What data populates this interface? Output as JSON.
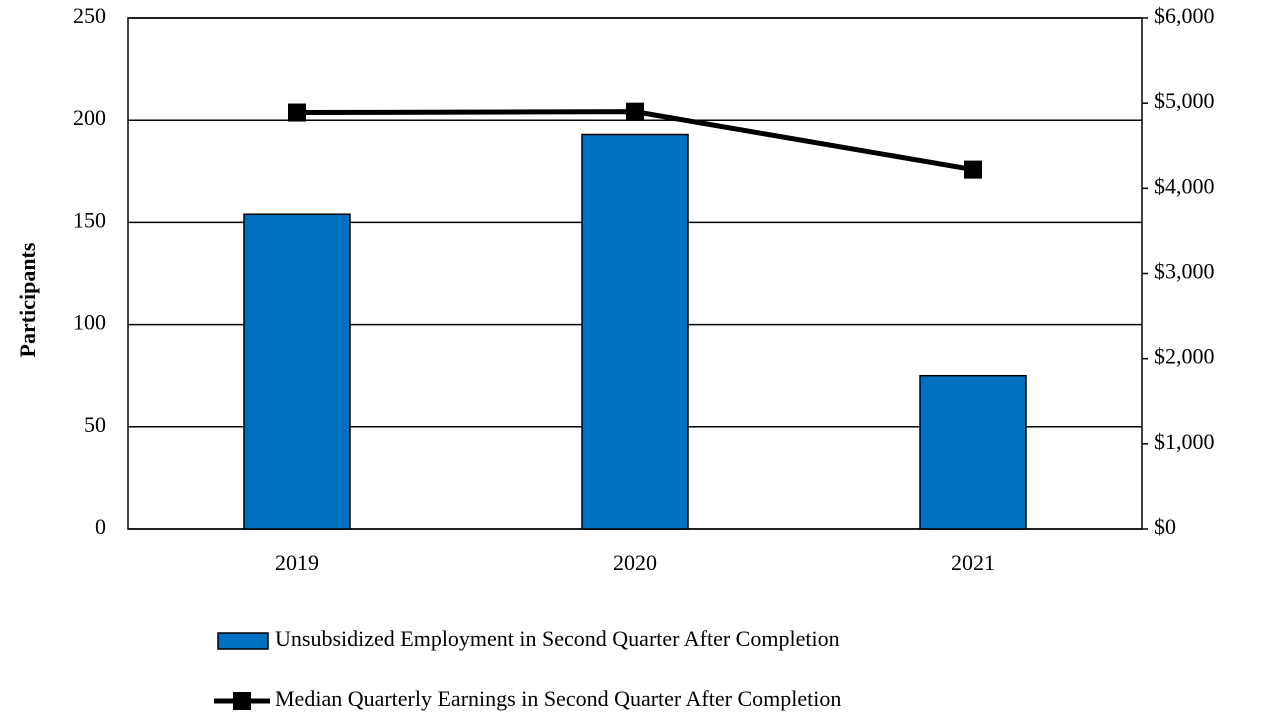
{
  "chart_data": {
    "type": "bar",
    "y_label": "Participants",
    "categories": [
      "2019",
      "2020",
      "2021"
    ],
    "series": [
      {
        "name": "Unsubsidized Employment in Second Quarter After Completion",
        "color": "#0070c0",
        "type": "bar",
        "values": [
          154,
          193,
          75
        ]
      },
      {
        "name": "Median Quarterly Earnings in Second Quarter After Completion",
        "color": "#000000",
        "type": "line",
        "axis": "y2",
        "values": [
          4890,
          4900,
          4220
        ]
      }
    ],
    "ylim": [
      0,
      250
    ],
    "yticks": [
      0,
      50,
      100,
      150,
      200,
      250
    ],
    "y2lim": [
      0,
      6000
    ],
    "y2ticks": [
      {
        "value": 0,
        "label": "$0"
      },
      {
        "value": 1000,
        "label": "$1,000"
      },
      {
        "value": 2000,
        "label": "$2,000"
      },
      {
        "value": 3000,
        "label": "$3,000"
      },
      {
        "value": 4000,
        "label": "$4,000"
      },
      {
        "value": 5000,
        "label": "$5,000"
      },
      {
        "value": 6000,
        "label": "$6,000"
      }
    ],
    "grid": true,
    "legend": "bottom"
  }
}
